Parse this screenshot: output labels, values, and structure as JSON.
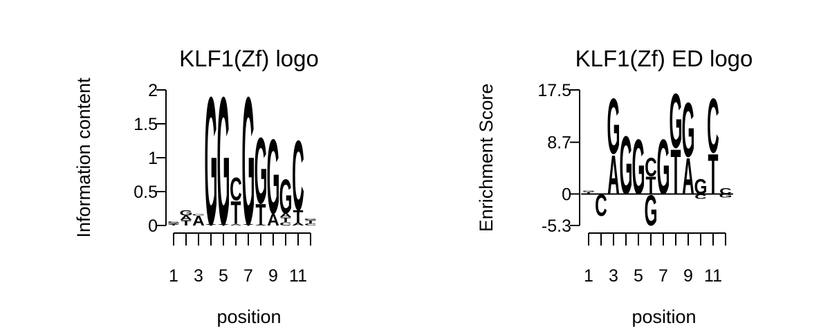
{
  "colors": {
    "A": "#00ee00",
    "C": "#0000ee",
    "G": "#ffa500",
    "T": "#ff0000"
  },
  "chart_data": [
    {
      "type": "sequence-logo",
      "title": "KLF1(Zf) logo",
      "xlabel": "position",
      "ylabel": "Information content",
      "ylim": [
        0,
        2
      ],
      "yticks": [
        "0",
        "0.5",
        "1",
        "1.5",
        "2"
      ],
      "ytick_values": [
        0,
        0.5,
        1,
        1.5,
        2
      ],
      "xtick_labels": [
        "1",
        "3",
        "5",
        "7",
        "9",
        "11"
      ],
      "positions": [
        1,
        2,
        3,
        4,
        5,
        6,
        7,
        8,
        9,
        10,
        11,
        12
      ],
      "stacks": [
        [
          [
            "T",
            0.015
          ],
          [
            "A",
            0.015
          ],
          [
            "G",
            0.015
          ],
          [
            "C",
            0.015
          ]
        ],
        [
          [
            "T",
            0.08
          ],
          [
            "A",
            0.07
          ],
          [
            "G",
            0.08
          ]
        ],
        [
          [
            "A",
            0.15
          ],
          [
            "G",
            0.02
          ]
        ],
        [
          [
            "T",
            0.01
          ],
          [
            "A",
            0.01
          ],
          [
            "G",
            1.94
          ]
        ],
        [
          [
            "T",
            0.01
          ],
          [
            "A",
            0.01
          ],
          [
            "G",
            1.94
          ]
        ],
        [
          [
            "A",
            0.02
          ],
          [
            "T",
            0.35
          ],
          [
            "C",
            0.35
          ]
        ],
        [
          [
            "T",
            0.01
          ],
          [
            "A",
            0.01
          ],
          [
            "G",
            1.94
          ]
        ],
        [
          [
            "A",
            0.01
          ],
          [
            "T",
            0.32
          ],
          [
            "G",
            1.0
          ]
        ],
        [
          [
            "A",
            0.18
          ],
          [
            "G",
            1.13
          ]
        ],
        [
          [
            "C",
            0.05
          ],
          [
            "T",
            0.07
          ],
          [
            "A",
            0.06
          ],
          [
            "G",
            0.52
          ]
        ],
        [
          [
            "A",
            0.04
          ],
          [
            "T",
            0.19
          ],
          [
            "C",
            1.06
          ]
        ],
        [
          [
            "C",
            0.03
          ],
          [
            "T",
            0.05
          ],
          [
            "G",
            0.02
          ]
        ]
      ]
    },
    {
      "type": "sequence-logo",
      "title": "KLF1(Zf) ED logo",
      "xlabel": "position",
      "ylabel": "Enrichment Score",
      "ylim": [
        -5.3,
        17.5
      ],
      "yticks": [
        "-5.3",
        "0",
        "8.7",
        "17.5"
      ],
      "ytick_values": [
        -5.3,
        0,
        8.7,
        17.5
      ],
      "xtick_labels": [
        "1",
        "3",
        "5",
        "7",
        "9",
        "11"
      ],
      "positions": [
        1,
        2,
        3,
        4,
        5,
        6,
        7,
        8,
        9,
        10,
        11,
        12
      ],
      "stacks": [
        {
          "pos": [
            [
              "T",
              0.4
            ],
            [
              "G",
              0.15
            ]
          ],
          "neg": []
        },
        {
          "pos": [],
          "neg": [
            [
              "C",
              3.7
            ]
          ]
        },
        {
          "pos": [
            [
              "A",
              6.8
            ],
            [
              "G",
              9.6
            ]
          ],
          "neg": []
        },
        {
          "pos": [
            [
              "G",
              10.0
            ]
          ],
          "neg": []
        },
        {
          "pos": [
            [
              "G",
              9.5
            ]
          ],
          "neg": []
        },
        {
          "pos": [
            [
              "T",
              3.0
            ],
            [
              "C",
              3.2
            ]
          ],
          "neg": [
            [
              "G",
              5.3
            ]
          ]
        },
        {
          "pos": [
            [
              "G",
              9.5
            ]
          ],
          "neg": []
        },
        {
          "pos": [
            [
              "T",
              7.8
            ],
            [
              "G",
              9.4
            ]
          ],
          "neg": []
        },
        {
          "pos": [
            [
              "A",
              6.3
            ],
            [
              "G",
              9.4
            ]
          ],
          "neg": []
        },
        {
          "pos": [
            [
              "G",
              2.6
            ]
          ],
          "neg": [
            [
              "C",
              0.8
            ]
          ]
        },
        {
          "pos": [
            [
              "T",
              7.0
            ],
            [
              "C",
              9.4
            ]
          ],
          "neg": []
        },
        {
          "pos": [
            [
              "C",
              1.0
            ]
          ],
          "neg": [
            [
              "G",
              0.6
            ]
          ]
        }
      ]
    }
  ]
}
